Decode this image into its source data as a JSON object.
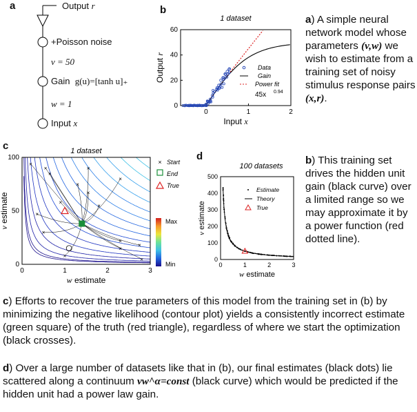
{
  "panels": {
    "a": {
      "letter": "a",
      "output": "Output",
      "output_var": "r",
      "poisson": "+Poisson noise",
      "v_eq": "v = 50",
      "gain": "Gain",
      "gain_fn": "g(u)=[tanh u]₊",
      "w_eq": "w = 1",
      "input": "Input",
      "input_var": "x"
    },
    "b": {
      "letter": "b",
      "title": "1 dataset",
      "xlabel": "Input",
      "xvar": "x",
      "ylabel": "Output",
      "yvar": "r",
      "legend": [
        "Data",
        "Gain",
        "Power fit"
      ],
      "fit_label": "45x",
      "fit_exp": "0.94"
    },
    "c": {
      "letter": "c",
      "title": "1 dataset",
      "xlabel": "w estimate",
      "ylabel": "v estimate",
      "legend": [
        "Start",
        "End",
        "True"
      ],
      "cbar_max": "Max",
      "cbar_min": "Min"
    },
    "d": {
      "letter": "d",
      "title": "100 datasets",
      "xlabel": "w estimate",
      "ylabel": "v estimate",
      "legend": [
        "Estimate",
        "Theory",
        "True"
      ]
    }
  },
  "captions": {
    "a_letter": "a",
    "a_text": ") A simple neural network model whose parameters",
    "a_vw": "(v,w)",
    "a_text2": " we wish to estimate from a training set of noisy stimulus response pairs ",
    "a_xr": "(x,r)",
    "a_end": ".",
    "b_letter": "b",
    "b_text": ") This training set drives the hidden unit gain (black curve) over a limited range so we may approximate it by a power function (red dotted line).",
    "c_letter": "c",
    "c_text": ") Efforts to recover the true parameters of this model from the training set in (b) by minimizing the negative likelihood (contour plot) yields a consistently incorrect estimate (green square) of the truth (red triangle), regardless of where we start the optimization (black crosses).",
    "d_letter": "d",
    "d_text": ") Over a large number of datasets like that in (b), our final estimates (black dots)  lie scattered along a continuum ",
    "d_formula": "vw^α=const",
    "d_text2": " (black curve) which would be predicted if the hidden unit had a power law gain."
  },
  "chart_data": [
    {
      "type": "scatter",
      "panel": "b",
      "title": "1 dataset",
      "xlabel": "Input x",
      "ylabel": "Output r",
      "xlim": [
        -0.6,
        2
      ],
      "ylim": [
        0,
        60
      ],
      "xticks": [
        "0",
        "1",
        "2"
      ],
      "yticks": [
        "0",
        "20",
        "40",
        "60"
      ],
      "series": [
        {
          "name": "Data",
          "kind": "points",
          "x": [
            -0.5,
            -0.4,
            -0.3,
            -0.2,
            -0.1,
            0.0,
            0.05,
            0.1,
            0.15,
            0.2,
            0.25,
            0.3,
            0.35,
            0.4,
            0.45,
            0.5,
            0.55
          ],
          "y": [
            0,
            0,
            0,
            0,
            0,
            1,
            3,
            5,
            8,
            11,
            13,
            16,
            20,
            22,
            25,
            27,
            29
          ]
        },
        {
          "name": "Gain",
          "kind": "line",
          "fn": "50*tanh(max(x,0))"
        },
        {
          "name": "Power fit",
          "kind": "dotted",
          "fn": "45*x^0.94"
        }
      ]
    },
    {
      "type": "heatmap",
      "panel": "c",
      "title": "1 dataset",
      "xlabel": "w estimate",
      "ylabel": "v estimate",
      "xlim": [
        0,
        3
      ],
      "ylim": [
        0,
        100
      ],
      "xticks": [
        "0",
        "1",
        "2",
        "3"
      ],
      "yticks": [
        "0",
        "50",
        "100"
      ],
      "series": [
        {
          "name": "Start",
          "x": [
            0.2,
            0.55,
            0.65,
            0.9,
            1.3,
            1.55,
            1.8,
            2.3,
            2.3,
            2.75,
            2.8,
            1.55,
            0.35,
            0.5,
            1.0,
            2.3
          ],
          "y": [
            94,
            90,
            85,
            58,
            75,
            67,
            55,
            22,
            15,
            18,
            5,
            90,
            47,
            30,
            8,
            80
          ]
        },
        {
          "name": "End",
          "x": [
            1.4
          ],
          "y": [
            38
          ]
        },
        {
          "name": "True",
          "x": [
            1.0
          ],
          "y": [
            50
          ]
        }
      ]
    },
    {
      "type": "scatter",
      "panel": "d",
      "title": "100 datasets",
      "xlabel": "w estimate",
      "ylabel": "v estimate",
      "xlim": [
        0,
        3
      ],
      "ylim": [
        0,
        500
      ],
      "xticks": [
        "0",
        "1",
        "2",
        "3"
      ],
      "yticks": [
        "0",
        "100",
        "200",
        "300",
        "400",
        "500"
      ],
      "series": [
        {
          "name": "Estimate",
          "kind": "points"
        },
        {
          "name": "Theory",
          "kind": "line",
          "fn": "50/x^0.94"
        },
        {
          "name": "True",
          "x": [
            1.0
          ],
          "y": [
            50
          ]
        }
      ]
    }
  ]
}
